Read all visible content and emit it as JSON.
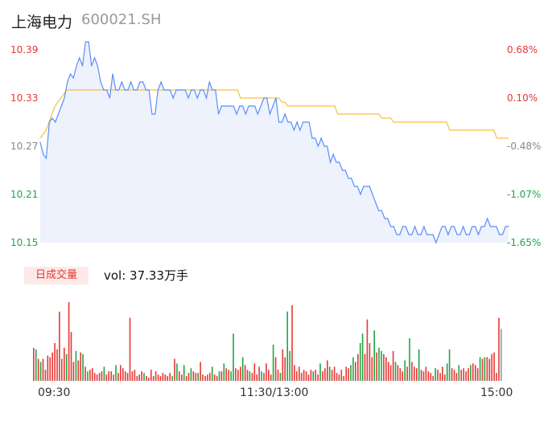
{
  "header": {
    "name": "上海电力",
    "code": "600021.SH"
  },
  "chart_data": {
    "type": "line",
    "title": "上海电力 600021.SH",
    "price_axis": {
      "ticks": [
        "10.39",
        "10.33",
        "10.27",
        "10.21",
        "10.15"
      ],
      "ylim": [
        10.15,
        10.39
      ]
    },
    "percent_axis": {
      "ticks": [
        "0.68%",
        "0.10%",
        "-0.48%",
        "-1.07%",
        "-1.65%"
      ]
    },
    "x_ticks": [
      "09:30",
      "11:30/13:00",
      "15:00"
    ],
    "colors": {
      "price": "#5b8ff9",
      "avg": "#f5c146",
      "up": "#e53935",
      "down": "#22a544",
      "neutral": "#999999",
      "fill": "#eef2fd"
    },
    "series": [
      {
        "values": [
          10.275,
          10.26,
          10.255,
          10.3,
          10.305,
          10.3,
          10.31,
          10.32,
          10.33,
          10.35,
          10.36,
          10.355,
          10.37,
          10.38,
          10.37,
          10.4,
          10.4,
          10.37,
          10.38,
          10.37,
          10.35,
          10.34,
          10.34,
          10.33,
          10.36,
          10.34,
          10.34,
          10.35,
          10.34,
          10.34,
          10.35,
          10.34,
          10.34,
          10.35,
          10.35,
          10.34,
          10.34,
          10.31,
          10.31,
          10.34,
          10.35,
          10.34,
          10.34,
          10.34,
          10.33,
          10.34,
          10.34,
          10.34,
          10.34,
          10.33,
          10.34,
          10.34,
          10.33,
          10.34,
          10.34,
          10.33,
          10.35,
          10.34,
          10.34,
          10.31,
          10.32,
          10.32,
          10.32,
          10.32,
          10.32,
          10.31,
          10.32,
          10.32,
          10.31,
          10.32,
          10.32,
          10.32,
          10.31,
          10.32,
          10.33,
          10.33,
          10.31,
          10.32,
          10.33,
          10.3,
          10.3,
          10.31,
          10.3,
          10.3,
          10.29,
          10.3,
          10.29,
          10.3,
          10.3,
          10.3,
          10.28,
          10.28,
          10.27,
          10.28,
          10.27,
          10.27,
          10.25,
          10.26,
          10.25,
          10.25,
          10.24,
          10.24,
          10.23,
          10.23,
          10.22,
          10.22,
          10.21,
          10.22,
          10.22,
          10.22,
          10.21,
          10.2,
          10.19,
          10.19,
          10.18,
          10.18,
          10.17,
          10.17,
          10.16,
          10.16,
          10.17,
          10.17,
          10.16,
          10.16,
          10.17,
          10.16,
          10.16,
          10.17,
          10.16,
          10.16,
          10.16,
          10.15,
          10.16,
          10.17,
          10.17,
          10.16,
          10.17,
          10.17,
          10.16,
          10.16,
          10.17,
          10.16,
          10.16,
          10.17,
          10.17,
          10.16,
          10.17,
          10.17,
          10.18,
          10.17,
          10.17,
          10.17,
          10.16,
          10.16,
          10.17,
          10.17
        ]
      },
      {
        "values": [
          10.28,
          10.285,
          10.29,
          10.3,
          10.31,
          10.32,
          10.325,
          10.33,
          10.335,
          10.34,
          10.34,
          10.34,
          10.34,
          10.34,
          10.34,
          10.34,
          10.34,
          10.34,
          10.34,
          10.34,
          10.34,
          10.34,
          10.34,
          10.34,
          10.34,
          10.34,
          10.34,
          10.34,
          10.34,
          10.34,
          10.34,
          10.34,
          10.34,
          10.34,
          10.34,
          10.34,
          10.34,
          10.34,
          10.34,
          10.34,
          10.34,
          10.34,
          10.34,
          10.34,
          10.34,
          10.34,
          10.34,
          10.34,
          10.34,
          10.34,
          10.34,
          10.34,
          10.34,
          10.34,
          10.34,
          10.34,
          10.34,
          10.34,
          10.34,
          10.34,
          10.34,
          10.34,
          10.34,
          10.34,
          10.34,
          10.34,
          10.34,
          10.34,
          10.33,
          10.33,
          10.33,
          10.33,
          10.33,
          10.33,
          10.33,
          10.33,
          10.33,
          10.33,
          10.33,
          10.33,
          10.33,
          10.33,
          10.325,
          10.325,
          10.32,
          10.32,
          10.32,
          10.32,
          10.32,
          10.32,
          10.32,
          10.32,
          10.32,
          10.32,
          10.32,
          10.32,
          10.32,
          10.32,
          10.32,
          10.32,
          10.32,
          10.31,
          10.31,
          10.31,
          10.31,
          10.31,
          10.31,
          10.31,
          10.31,
          10.31,
          10.31,
          10.31,
          10.31,
          10.31,
          10.31,
          10.31,
          10.305,
          10.305,
          10.305,
          10.305,
          10.3,
          10.3,
          10.3,
          10.3,
          10.3,
          10.3,
          10.3,
          10.3,
          10.3,
          10.3,
          10.3,
          10.3,
          10.3,
          10.3,
          10.3,
          10.3,
          10.3,
          10.3,
          10.3,
          10.29,
          10.29,
          10.29,
          10.29,
          10.29,
          10.29,
          10.29,
          10.29,
          10.29,
          10.29,
          10.29,
          10.29,
          10.29,
          10.29,
          10.29,
          10.29,
          10.28,
          10.28,
          10.28,
          10.28,
          10.28
        ]
      }
    ],
    "volume": {
      "label": "日成交量",
      "summary": "vol: 37.33万手",
      "bars": [
        {
          "v": 42,
          "c": "up"
        },
        {
          "v": 40,
          "c": "down"
        },
        {
          "v": 28,
          "c": "up"
        },
        {
          "v": 24,
          "c": "down"
        },
        {
          "v": 28,
          "c": "up"
        },
        {
          "v": 14,
          "c": "up"
        },
        {
          "v": 32,
          "c": "up"
        },
        {
          "v": 30,
          "c": "up"
        },
        {
          "v": 36,
          "c": "up"
        },
        {
          "v": 48,
          "c": "up"
        },
        {
          "v": 40,
          "c": "up"
        },
        {
          "v": 88,
          "c": "up"
        },
        {
          "v": 28,
          "c": "up"
        },
        {
          "v": 42,
          "c": "up"
        },
        {
          "v": 34,
          "c": "down"
        },
        {
          "v": 100,
          "c": "up"
        },
        {
          "v": 62,
          "c": "up"
        },
        {
          "v": 24,
          "c": "up"
        },
        {
          "v": 38,
          "c": "down"
        },
        {
          "v": 26,
          "c": "up"
        },
        {
          "v": 36,
          "c": "up"
        },
        {
          "v": 34,
          "c": "down"
        },
        {
          "v": 18,
          "c": "up"
        },
        {
          "v": 12,
          "c": "down"
        },
        {
          "v": 14,
          "c": "up"
        },
        {
          "v": 16,
          "c": "up"
        },
        {
          "v": 10,
          "c": "up"
        },
        {
          "v": 8,
          "c": "up"
        },
        {
          "v": 10,
          "c": "up"
        },
        {
          "v": 12,
          "c": "up"
        },
        {
          "v": 18,
          "c": "down"
        },
        {
          "v": 8,
          "c": "up"
        },
        {
          "v": 12,
          "c": "up"
        },
        {
          "v": 12,
          "c": "up"
        },
        {
          "v": 8,
          "c": "up"
        },
        {
          "v": 20,
          "c": "down"
        },
        {
          "v": 10,
          "c": "up"
        },
        {
          "v": 20,
          "c": "up"
        },
        {
          "v": 16,
          "c": "up"
        },
        {
          "v": 12,
          "c": "up"
        },
        {
          "v": 10,
          "c": "up"
        },
        {
          "v": 80,
          "c": "up"
        },
        {
          "v": 12,
          "c": "up"
        },
        {
          "v": 14,
          "c": "up"
        },
        {
          "v": 6,
          "c": "up"
        },
        {
          "v": 8,
          "c": "up"
        },
        {
          "v": 12,
          "c": "up"
        },
        {
          "v": 10,
          "c": "down"
        },
        {
          "v": 6,
          "c": "up"
        },
        {
          "v": 4,
          "c": "up"
        },
        {
          "v": 14,
          "c": "up"
        },
        {
          "v": 6,
          "c": "up"
        },
        {
          "v": 12,
          "c": "up"
        },
        {
          "v": 8,
          "c": "up"
        },
        {
          "v": 6,
          "c": "up"
        },
        {
          "v": 10,
          "c": "up"
        },
        {
          "v": 8,
          "c": "up"
        },
        {
          "v": 6,
          "c": "up"
        },
        {
          "v": 10,
          "c": "up"
        },
        {
          "v": 6,
          "c": "down"
        },
        {
          "v": 28,
          "c": "up"
        },
        {
          "v": 22,
          "c": "down"
        },
        {
          "v": 12,
          "c": "up"
        },
        {
          "v": 8,
          "c": "up"
        },
        {
          "v": 20,
          "c": "down"
        },
        {
          "v": 6,
          "c": "up"
        },
        {
          "v": 10,
          "c": "up"
        },
        {
          "v": 16,
          "c": "down"
        },
        {
          "v": 12,
          "c": "up"
        },
        {
          "v": 10,
          "c": "up"
        },
        {
          "v": 10,
          "c": "down"
        },
        {
          "v": 24,
          "c": "up"
        },
        {
          "v": 8,
          "c": "up"
        },
        {
          "v": 6,
          "c": "up"
        },
        {
          "v": 8,
          "c": "up"
        },
        {
          "v": 10,
          "c": "up"
        },
        {
          "v": 18,
          "c": "down"
        },
        {
          "v": 8,
          "c": "up"
        },
        {
          "v": 6,
          "c": "up"
        },
        {
          "v": 12,
          "c": "down"
        },
        {
          "v": 12,
          "c": "up"
        },
        {
          "v": 22,
          "c": "down"
        },
        {
          "v": 16,
          "c": "up"
        },
        {
          "v": 14,
          "c": "up"
        },
        {
          "v": 12,
          "c": "down"
        },
        {
          "v": 60,
          "c": "down"
        },
        {
          "v": 16,
          "c": "up"
        },
        {
          "v": 14,
          "c": "up"
        },
        {
          "v": 18,
          "c": "up"
        },
        {
          "v": 30,
          "c": "down"
        },
        {
          "v": 20,
          "c": "up"
        },
        {
          "v": 14,
          "c": "up"
        },
        {
          "v": 12,
          "c": "down"
        },
        {
          "v": 10,
          "c": "up"
        },
        {
          "v": 22,
          "c": "up"
        },
        {
          "v": 8,
          "c": "up"
        },
        {
          "v": 18,
          "c": "up"
        },
        {
          "v": 12,
          "c": "down"
        },
        {
          "v": 10,
          "c": "up"
        },
        {
          "v": 22,
          "c": "up"
        },
        {
          "v": 14,
          "c": "up"
        },
        {
          "v": 8,
          "c": "up"
        },
        {
          "v": 46,
          "c": "down"
        },
        {
          "v": 30,
          "c": "up"
        },
        {
          "v": 14,
          "c": "up"
        },
        {
          "v": 10,
          "c": "down"
        },
        {
          "v": 40,
          "c": "up"
        },
        {
          "v": 30,
          "c": "up"
        },
        {
          "v": 88,
          "c": "down"
        },
        {
          "v": 38,
          "c": "down"
        },
        {
          "v": 96,
          "c": "up"
        },
        {
          "v": 20,
          "c": "up"
        },
        {
          "v": 12,
          "c": "up"
        },
        {
          "v": 18,
          "c": "up"
        },
        {
          "v": 10,
          "c": "up"
        },
        {
          "v": 14,
          "c": "up"
        },
        {
          "v": 12,
          "c": "up"
        },
        {
          "v": 8,
          "c": "up"
        },
        {
          "v": 14,
          "c": "up"
        },
        {
          "v": 12,
          "c": "down"
        },
        {
          "v": 14,
          "c": "up"
        },
        {
          "v": 8,
          "c": "up"
        },
        {
          "v": 22,
          "c": "down"
        },
        {
          "v": 12,
          "c": "up"
        },
        {
          "v": 16,
          "c": "up"
        },
        {
          "v": 26,
          "c": "up"
        },
        {
          "v": 18,
          "c": "down"
        },
        {
          "v": 14,
          "c": "up"
        },
        {
          "v": 18,
          "c": "up"
        },
        {
          "v": 10,
          "c": "up"
        },
        {
          "v": 8,
          "c": "up"
        },
        {
          "v": 14,
          "c": "up"
        },
        {
          "v": 6,
          "c": "up"
        },
        {
          "v": 18,
          "c": "up"
        },
        {
          "v": 16,
          "c": "up"
        },
        {
          "v": 20,
          "c": "down"
        },
        {
          "v": 30,
          "c": "down"
        },
        {
          "v": 24,
          "c": "up"
        },
        {
          "v": 34,
          "c": "up"
        },
        {
          "v": 48,
          "c": "down"
        },
        {
          "v": 60,
          "c": "down"
        },
        {
          "v": 34,
          "c": "up"
        },
        {
          "v": 78,
          "c": "up"
        },
        {
          "v": 48,
          "c": "up"
        },
        {
          "v": 30,
          "c": "up"
        },
        {
          "v": 64,
          "c": "down"
        },
        {
          "v": 36,
          "c": "up"
        },
        {
          "v": 42,
          "c": "down"
        },
        {
          "v": 38,
          "c": "down"
        },
        {
          "v": 34,
          "c": "up"
        },
        {
          "v": 30,
          "c": "up"
        },
        {
          "v": 24,
          "c": "up"
        },
        {
          "v": 20,
          "c": "up"
        },
        {
          "v": 38,
          "c": "up"
        },
        {
          "v": 24,
          "c": "down"
        },
        {
          "v": 20,
          "c": "up"
        },
        {
          "v": 16,
          "c": "up"
        },
        {
          "v": 12,
          "c": "up"
        },
        {
          "v": 26,
          "c": "down"
        },
        {
          "v": 18,
          "c": "up"
        },
        {
          "v": 54,
          "c": "down"
        },
        {
          "v": 24,
          "c": "up"
        },
        {
          "v": 18,
          "c": "up"
        },
        {
          "v": 16,
          "c": "up"
        },
        {
          "v": 40,
          "c": "down"
        },
        {
          "v": 14,
          "c": "up"
        },
        {
          "v": 12,
          "c": "up"
        },
        {
          "v": 18,
          "c": "up"
        },
        {
          "v": 12,
          "c": "up"
        },
        {
          "v": 10,
          "c": "up"
        },
        {
          "v": 6,
          "c": "up"
        },
        {
          "v": 16,
          "c": "down"
        },
        {
          "v": 14,
          "c": "up"
        },
        {
          "v": 10,
          "c": "up"
        },
        {
          "v": 18,
          "c": "up"
        },
        {
          "v": 8,
          "c": "up"
        },
        {
          "v": 22,
          "c": "down"
        },
        {
          "v": 40,
          "c": "down"
        },
        {
          "v": 16,
          "c": "up"
        },
        {
          "v": 14,
          "c": "up"
        },
        {
          "v": 10,
          "c": "up"
        },
        {
          "v": 20,
          "c": "down"
        },
        {
          "v": 14,
          "c": "up"
        },
        {
          "v": 16,
          "c": "up"
        },
        {
          "v": 12,
          "c": "up"
        },
        {
          "v": 16,
          "c": "up"
        },
        {
          "v": 20,
          "c": "down"
        },
        {
          "v": 22,
          "c": "up"
        },
        {
          "v": 20,
          "c": "up"
        },
        {
          "v": 16,
          "c": "up"
        },
        {
          "v": 30,
          "c": "down"
        },
        {
          "v": 28,
          "c": "up"
        },
        {
          "v": 30,
          "c": "down"
        },
        {
          "v": 30,
          "c": "up"
        },
        {
          "v": 28,
          "c": "up"
        },
        {
          "v": 34,
          "c": "up"
        },
        {
          "v": 36,
          "c": "up"
        },
        {
          "v": 10,
          "c": "up"
        },
        {
          "v": 80,
          "c": "up"
        },
        {
          "v": 66,
          "c": "neutral"
        }
      ]
    }
  }
}
